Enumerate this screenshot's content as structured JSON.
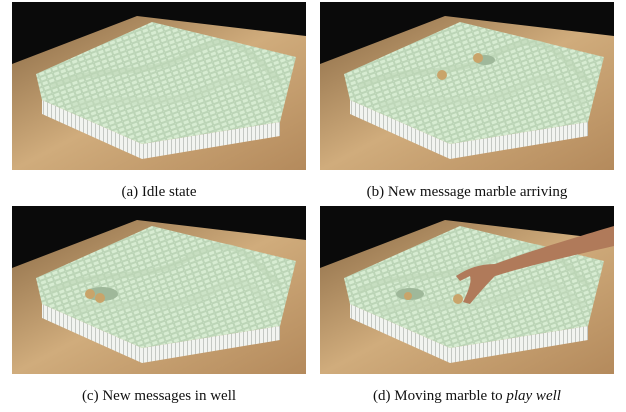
{
  "figure": {
    "panels": [
      {
        "caption": "(a) Idle state"
      },
      {
        "caption": "(b) New message marble arriving"
      },
      {
        "caption": "(c) New messages in well"
      },
      {
        "caption": "(d) Moving marble to",
        "emphasis": "play well"
      }
    ]
  }
}
